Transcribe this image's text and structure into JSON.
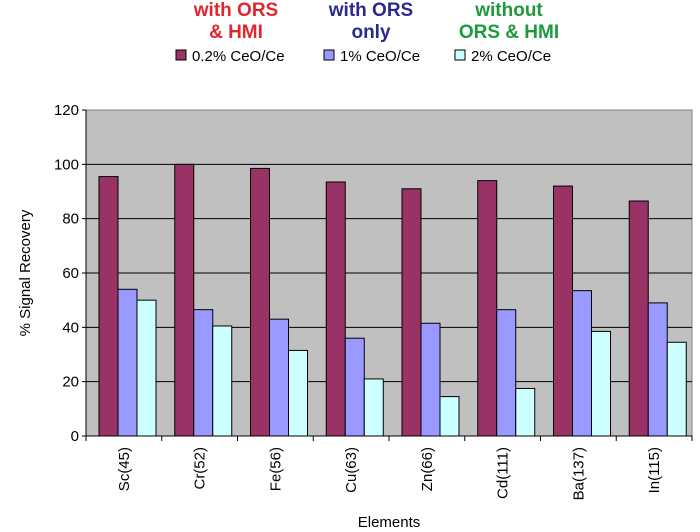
{
  "headers": [
    {
      "lines": [
        "with ORS",
        "& HMI"
      ],
      "color": "#e0262e"
    },
    {
      "lines": [
        "with ORS",
        "only"
      ],
      "color": "#2a2a8c"
    },
    {
      "lines": [
        "without",
        "ORS & HMI"
      ],
      "color": "#1d9a3e"
    }
  ],
  "chart_data": {
    "type": "bar",
    "categories": [
      "Sc(45)",
      "Cr(52)",
      "Fe(56)",
      "Cu(63)",
      "Zn(66)",
      "Cd(111)",
      "Ba(137)",
      "In(115)"
    ],
    "series": [
      {
        "name": "0.2% CeO/Ce",
        "color": "#993366",
        "values": [
          95.5,
          100,
          98.5,
          93.5,
          91,
          94,
          92,
          86.5
        ]
      },
      {
        "name": "1% CeO/Ce",
        "color": "#9999ff",
        "values": [
          54,
          46.5,
          43,
          36,
          41.5,
          46.5,
          53.5,
          49
        ]
      },
      {
        "name": "2% CeO/Ce",
        "color": "#ccffff",
        "values": [
          50,
          40.5,
          31.5,
          21,
          14.5,
          17.5,
          38.5,
          34.5
        ]
      }
    ],
    "ylim": [
      0,
      120
    ],
    "yticks": [
      0,
      20,
      40,
      60,
      80,
      100,
      120
    ],
    "xlabel": "Elements",
    "ylabel": "% Signal Recovery",
    "grid": true,
    "legend_position": "top",
    "plot_background": "#c0c0c0"
  }
}
